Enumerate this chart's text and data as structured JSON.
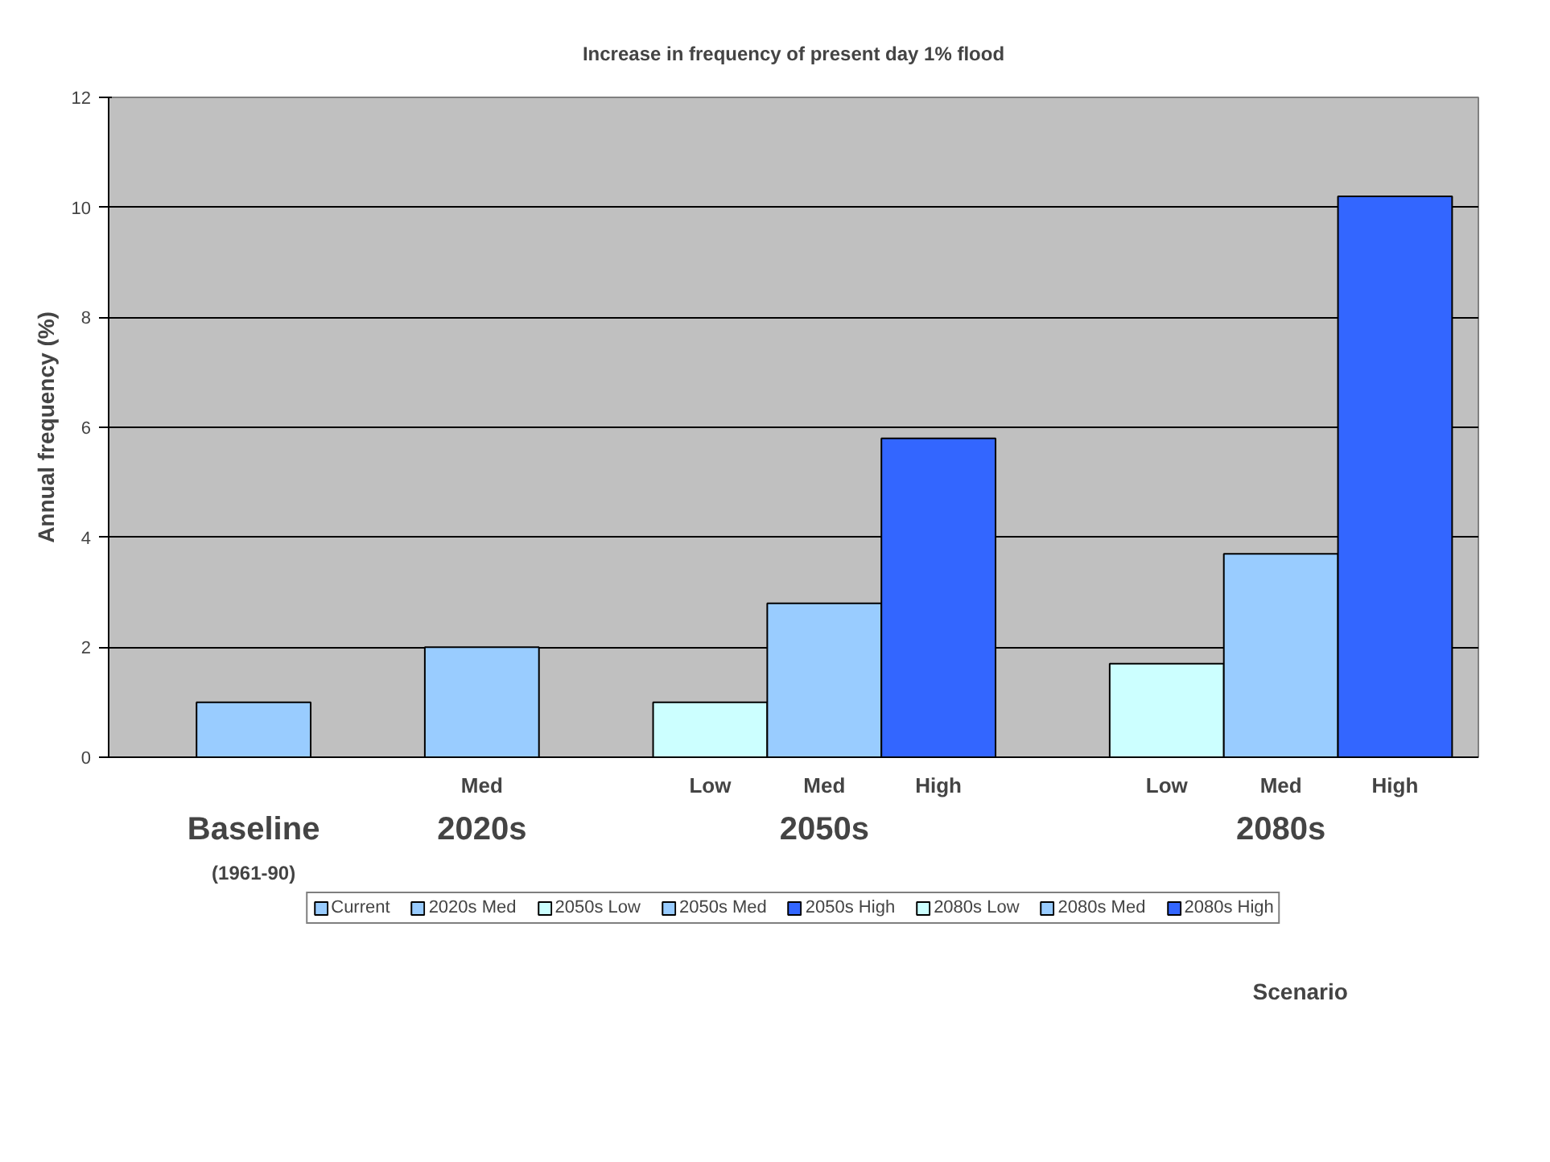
{
  "chart_data": {
    "type": "bar",
    "title": "Increase in frequency of present day 1% flood",
    "ylabel": "Annual frequency (%)",
    "categories": [
      null,
      null,
      "Med",
      null,
      "Low",
      "Med",
      "High",
      null,
      "Low",
      "Med",
      "High"
    ],
    "series": [
      {
        "name": "Current",
        "color": "#99ccff",
        "values": [
          1.0,
          null,
          null,
          null,
          null,
          null,
          null,
          null,
          null,
          null,
          null
        ]
      },
      {
        "name": "2020s Med",
        "color": "#99ccff",
        "values": [
          null,
          null,
          2.0,
          null,
          null,
          null,
          null,
          null,
          null,
          null,
          null
        ]
      },
      {
        "name": "2050s Low",
        "color": "#ccffff",
        "values": [
          null,
          null,
          null,
          null,
          1.0,
          null,
          null,
          null,
          null,
          null,
          null
        ]
      },
      {
        "name": "2050s Med",
        "color": "#99ccff",
        "values": [
          null,
          null,
          null,
          null,
          null,
          2.8,
          null,
          null,
          null,
          null,
          null
        ]
      },
      {
        "name": "2050s High",
        "color": "#3366ff",
        "values": [
          null,
          null,
          null,
          null,
          null,
          null,
          5.8,
          null,
          null,
          null,
          null
        ]
      },
      {
        "name": "2080s Low",
        "color": "#ccffff",
        "values": [
          null,
          null,
          null,
          null,
          null,
          null,
          null,
          null,
          1.7,
          null,
          null
        ]
      },
      {
        "name": "2080s Med",
        "color": "#99ccff",
        "values": [
          null,
          null,
          null,
          null,
          null,
          null,
          null,
          null,
          null,
          3.7,
          null
        ]
      },
      {
        "name": "2080s High",
        "color": "#3366ff",
        "values": [
          null,
          null,
          null,
          null,
          null,
          null,
          null,
          null,
          null,
          null,
          10.2
        ]
      }
    ],
    "annotations": [
      "Baseline",
      "(1961-90)",
      "2020s",
      "2050s",
      "2080s",
      "Scenario"
    ],
    "ylim": [
      0,
      12
    ],
    "yticks": [
      0,
      2,
      4,
      6,
      8,
      10,
      12
    ],
    "grid": "y",
    "legend": "bottom"
  }
}
